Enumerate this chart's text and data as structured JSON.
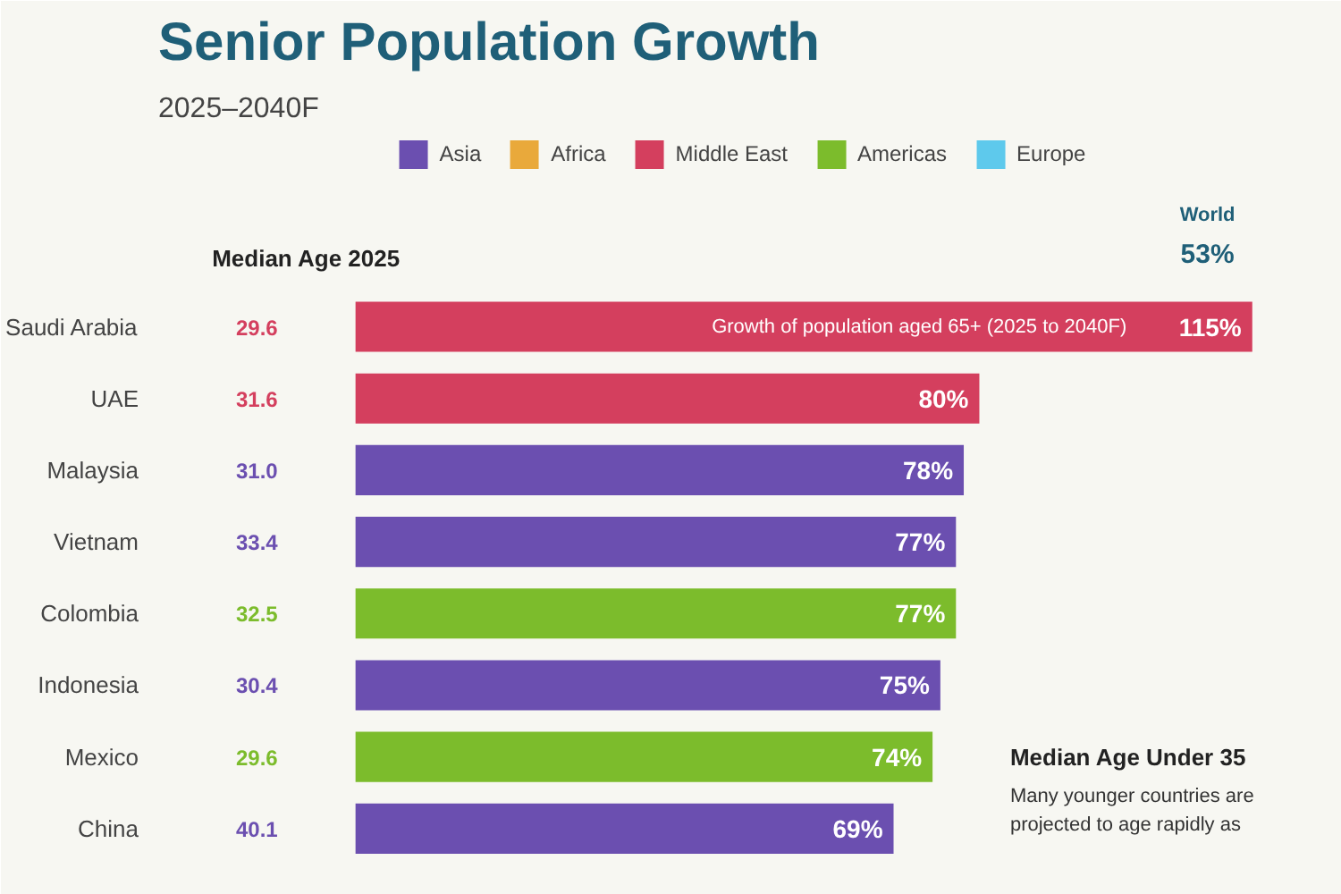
{
  "chart_data": {
    "type": "bar",
    "orientation": "horizontal",
    "title": "Senior Population Growth",
    "subtitle": "2025–2040F",
    "categories": [
      "Saudi Arabia",
      "UAE",
      "Malaysia",
      "Vietnam",
      "Colombia",
      "Indonesia",
      "Mexico",
      "China"
    ],
    "series": [
      {
        "name": "Asia",
        "color": "#6b4fb0",
        "values": [
          null,
          null,
          78,
          77,
          null,
          75,
          null,
          69
        ],
        "value_labels": [
          null,
          null,
          "78%",
          "77%",
          null,
          "75%",
          null,
          "69%"
        ]
      },
      {
        "name": "Africa",
        "color": "#e9a93b",
        "values": [
          null,
          null,
          null,
          null,
          null,
          null,
          null,
          null
        ]
      },
      {
        "name": "Middle East",
        "color": "#d43f5e",
        "values": [
          115,
          80,
          null,
          null,
          null,
          null,
          null,
          null
        ],
        "value_labels": [
          "115%",
          "80%",
          null,
          null,
          null,
          null,
          null,
          null
        ]
      },
      {
        "name": "Americas",
        "color": "#7cbc2c",
        "values": [
          null,
          null,
          null,
          null,
          77,
          null,
          74,
          null
        ],
        "value_labels": [
          null,
          null,
          null,
          null,
          "77%",
          null,
          "74%",
          null
        ]
      },
      {
        "name": "Europe",
        "color": "#5ec9ec",
        "values": [
          null,
          null,
          null,
          null,
          null,
          null,
          null,
          null
        ]
      }
    ],
    "annotations": [
      "29.6",
      "31.6",
      "31.0",
      "33.4",
      "32.5",
      "30.4",
      "29.6",
      "40.1",
      "Median Age 2025",
      "Growth of population aged 65+ (2025 to 2040F)",
      "World",
      "53%",
      "Median Age Under 35",
      "Many younger countries are",
      "projected to age rapidly as"
    ],
    "legend": "top",
    "tick_labels": "y",
    "grid": false
  }
}
